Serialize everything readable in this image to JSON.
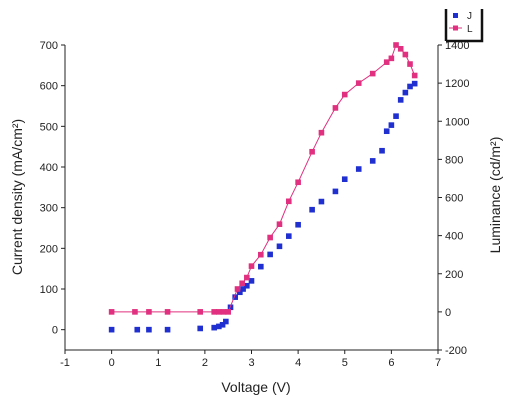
{
  "chart_data": {
    "type": "scatter",
    "xlabel": "Voltage (V)",
    "ylabel": "Current density (mA/cm²)",
    "y2label": "Luminance (cd/m²)",
    "xlim": [
      -1,
      7
    ],
    "ylim": [
      -50,
      700
    ],
    "y2lim": [
      -200,
      1400
    ],
    "x_ticks": [
      "-1",
      "0",
      "1",
      "2",
      "3",
      "4",
      "5",
      "6",
      "7"
    ],
    "y_ticks": [
      "0",
      "100",
      "200",
      "300",
      "400",
      "500",
      "600",
      "700"
    ],
    "y2_ticks": [
      "-200",
      "0",
      "200",
      "400",
      "600",
      "800",
      "1000",
      "1200",
      "1400"
    ],
    "grid": false,
    "legend_position": "top-right",
    "series": [
      {
        "name": "J",
        "axis": "left",
        "color": "#1f2fd0",
        "marker": "square",
        "line": false,
        "x": [
          0,
          0.55,
          0.8,
          1.2,
          1.9,
          2.2,
          2.3,
          2.38,
          2.45,
          2.55,
          2.65,
          2.75,
          2.82,
          2.9,
          3.0,
          3.2,
          3.4,
          3.6,
          3.8,
          4.0,
          4.3,
          4.5,
          4.8,
          5.0,
          5.3,
          5.6,
          5.8,
          5.9,
          6.0,
          6.1,
          6.2,
          6.3,
          6.4,
          6.5
        ],
        "y": [
          0,
          0,
          0,
          0,
          3,
          5,
          8,
          12,
          20,
          55,
          80,
          92,
          100,
          108,
          120,
          155,
          185,
          205,
          230,
          258,
          295,
          315,
          340,
          370,
          395,
          415,
          440,
          488,
          503,
          525,
          565,
          583,
          598,
          605
        ]
      },
      {
        "name": "L",
        "axis": "right",
        "color": "#e0307f",
        "marker": "square",
        "line": true,
        "x": [
          0,
          0.5,
          0.8,
          1.2,
          1.9,
          2.2,
          2.3,
          2.4,
          2.5,
          2.7,
          2.8,
          2.9,
          3.0,
          3.2,
          3.4,
          3.6,
          3.8,
          4.0,
          4.3,
          4.5,
          4.8,
          5.0,
          5.3,
          5.6,
          5.9,
          6.0,
          6.1,
          6.2,
          6.3,
          6.4,
          6.5
        ],
        "y": [
          0,
          0,
          0,
          0,
          0,
          0,
          0,
          0,
          0,
          120,
          150,
          180,
          240,
          300,
          390,
          460,
          580,
          680,
          840,
          940,
          1070,
          1140,
          1200,
          1250,
          1310,
          1330,
          1400,
          1380,
          1350,
          1300,
          1240
        ]
      }
    ]
  }
}
